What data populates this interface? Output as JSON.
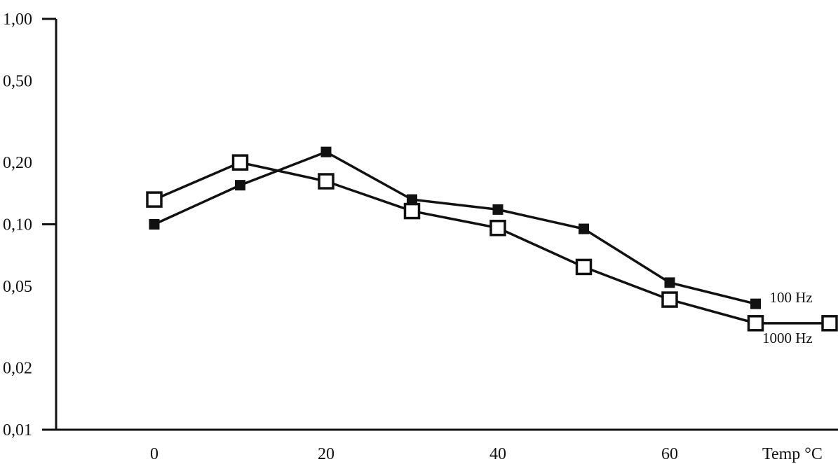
{
  "chart_data": {
    "type": "line",
    "title": "",
    "xlabel": "Temp °C",
    "ylabel": "",
    "y_scale": "log",
    "xlim": [
      -10,
      80
    ],
    "ylim": [
      0.01,
      1.0
    ],
    "x_ticks": [
      0,
      20,
      40,
      60
    ],
    "x_tick_labels": [
      "0",
      "20",
      "40",
      "60"
    ],
    "y_ticks": [
      0.01,
      0.02,
      0.05,
      0.1,
      0.2,
      0.5,
      1.0
    ],
    "y_tick_labels": [
      "0,01",
      "0,02",
      "0,05",
      "0,10",
      "0,20",
      "0,50",
      "1,00"
    ],
    "grid": false,
    "series": [
      {
        "name": "100 Hz",
        "marker": "filled-square",
        "x": [
          0,
          10,
          20,
          30,
          40,
          50,
          60,
          70
        ],
        "y": [
          0.1,
          0.155,
          0.225,
          0.132,
          0.118,
          0.095,
          0.052,
          0.041
        ]
      },
      {
        "name": "1000 Hz",
        "marker": "open-square",
        "x": [
          0,
          10,
          20,
          30,
          40,
          50,
          60,
          70,
          80
        ],
        "y": [
          0.132,
          0.2,
          0.162,
          0.116,
          0.096,
          0.062,
          0.043,
          0.033,
          0.033
        ]
      }
    ]
  }
}
